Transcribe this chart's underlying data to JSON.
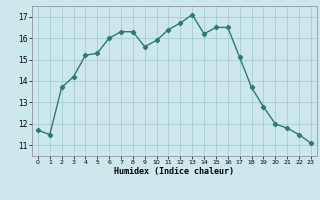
{
  "x": [
    0,
    1,
    2,
    3,
    4,
    5,
    6,
    7,
    8,
    9,
    10,
    11,
    12,
    13,
    14,
    15,
    16,
    17,
    18,
    19,
    20,
    21,
    22,
    23
  ],
  "y": [
    11.7,
    11.5,
    13.7,
    14.2,
    15.2,
    15.3,
    16.0,
    16.3,
    16.3,
    15.6,
    15.9,
    16.4,
    16.7,
    17.1,
    16.2,
    16.5,
    16.5,
    15.1,
    13.7,
    12.8,
    12.0,
    11.8,
    11.5,
    11.1
  ],
  "xlabel": "Humidex (Indice chaleur)",
  "xlim": [
    -0.5,
    23.5
  ],
  "ylim": [
    10.5,
    17.5
  ],
  "yticks": [
    11,
    12,
    13,
    14,
    15,
    16,
    17
  ],
  "xticks": [
    0,
    1,
    2,
    3,
    4,
    5,
    6,
    7,
    8,
    9,
    10,
    11,
    12,
    13,
    14,
    15,
    16,
    17,
    18,
    19,
    20,
    21,
    22,
    23
  ],
  "line_color": "#2d7a6e",
  "bg_color": "#cce8ec",
  "grid_color": "#aacdd2",
  "marker": "D",
  "marker_size": 2.2,
  "line_width": 1.0
}
